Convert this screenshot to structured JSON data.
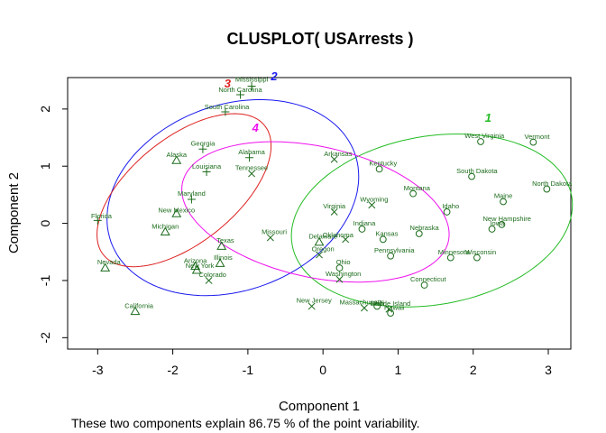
{
  "chart_data": {
    "type": "scatter",
    "title": "CLUSPLOT( USArrests )",
    "xlabel": "Component 1",
    "ylabel": "Component 2",
    "subtitle": "These two components explain 86.75 % of the point variability.",
    "xlim": [
      -3.4,
      3.3
    ],
    "ylim": [
      -2.2,
      2.55
    ],
    "xticks": [
      -3,
      -2,
      -1,
      0,
      1,
      2,
      3
    ],
    "yticks": [
      -2,
      -1,
      0,
      1,
      2
    ],
    "grid": false,
    "clusters": [
      {
        "label": "1",
        "symbol": "circle",
        "ellipse_color": "#22bb22",
        "label_color": "#22bb22",
        "ellipse": {
          "cx": 1.45,
          "cy": 0.05,
          "rx": 1.92,
          "ry": 1.45,
          "angle_deg": 20
        },
        "label_pos": [
          2.2,
          1.78
        ]
      },
      {
        "label": "2",
        "symbol": "triangle",
        "ellipse_color": "#1a1aee",
        "label_color": "#1a1aee",
        "ellipse": {
          "cx": -1.2,
          "cy": 0.45,
          "rx": 1.87,
          "ry": 1.5,
          "angle_deg": 48
        },
        "label_pos": [
          -0.65,
          2.5
        ]
      },
      {
        "label": "3",
        "symbol": "plus",
        "ellipse_color": "#dd2222",
        "label_color": "#dd2222",
        "ellipse": {
          "cx": -1.85,
          "cy": 0.58,
          "rx": 1.58,
          "ry": 0.8,
          "angle_deg": 52
        },
        "label_pos": [
          -1.27,
          2.38
        ]
      },
      {
        "label": "4",
        "symbol": "x",
        "ellipse_color": "#ee11ee",
        "label_color": "#ee11ee",
        "ellipse": {
          "cx": -0.1,
          "cy": 0.2,
          "rx": 1.85,
          "ry": 1.12,
          "angle_deg": -20
        },
        "label_pos": [
          -0.9,
          1.6
        ]
      }
    ],
    "points": [
      {
        "name": "Mississippi",
        "x": -0.95,
        "y": 2.4,
        "cluster": 3,
        "lx": -0.95,
        "ly": 2.48
      },
      {
        "name": "North Carolina",
        "x": -1.1,
        "y": 2.25,
        "cluster": 3,
        "lx": -1.1,
        "ly": 2.3
      },
      {
        "name": "South Carolina",
        "x": -1.3,
        "y": 1.95,
        "cluster": 3,
        "lx": -1.28,
        "ly": 2.0
      },
      {
        "name": "Georgia",
        "x": -1.6,
        "y": 1.3,
        "cluster": 3,
        "lx": -1.6,
        "ly": 1.36
      },
      {
        "name": "Alaska",
        "x": -1.95,
        "y": 1.1,
        "cluster": 2,
        "lx": -1.95,
        "ly": 1.16
      },
      {
        "name": "Alabama",
        "x": -0.98,
        "y": 1.15,
        "cluster": 3,
        "lx": -0.95,
        "ly": 1.21
      },
      {
        "name": "Louisiana",
        "x": -1.55,
        "y": 0.9,
        "cluster": 3,
        "lx": -1.55,
        "ly": 0.96
      },
      {
        "name": "Tennessee",
        "x": -0.95,
        "y": 0.87,
        "cluster": 4,
        "lx": -0.95,
        "ly": 0.93
      },
      {
        "name": "Maryland",
        "x": -1.75,
        "y": 0.42,
        "cluster": 3,
        "lx": -1.75,
        "ly": 0.48
      },
      {
        "name": "New Mexico",
        "x": -1.95,
        "y": 0.17,
        "cluster": 2,
        "lx": -1.95,
        "ly": 0.19
      },
      {
        "name": "Florida",
        "x": -3.0,
        "y": 0.05,
        "cluster": 3,
        "lx": -2.95,
        "ly": 0.09
      },
      {
        "name": "Michigan",
        "x": -2.1,
        "y": -0.15,
        "cluster": 2,
        "lx": -2.1,
        "ly": -0.09
      },
      {
        "name": "Nevada",
        "x": -2.9,
        "y": -0.78,
        "cluster": 2,
        "lx": -2.85,
        "ly": -0.72
      },
      {
        "name": "California",
        "x": -2.5,
        "y": -1.54,
        "cluster": 2,
        "lx": -2.45,
        "ly": -1.48
      },
      {
        "name": "Texas",
        "x": -1.35,
        "y": -0.4,
        "cluster": 2,
        "lx": -1.3,
        "ly": -0.34
      },
      {
        "name": "Illinois",
        "x": -1.37,
        "y": -0.7,
        "cluster": 2,
        "lx": -1.33,
        "ly": -0.64
      },
      {
        "name": "Arizona",
        "x": -1.7,
        "y": -0.75,
        "cluster": 2,
        "lx": -1.7,
        "ly": -0.69
      },
      {
        "name": "New York",
        "x": -1.68,
        "y": -0.82,
        "cluster": 2,
        "lx": -1.64,
        "ly": -0.78
      },
      {
        "name": "Colorado",
        "x": -1.52,
        "y": -1.0,
        "cluster": 4,
        "lx": -1.47,
        "ly": -0.94
      },
      {
        "name": "Missouri",
        "x": -0.7,
        "y": -0.25,
        "cluster": 4,
        "lx": -0.65,
        "ly": -0.19
      },
      {
        "name": "Arkansas",
        "x": 0.15,
        "y": 1.12,
        "cluster": 4,
        "lx": 0.2,
        "ly": 1.18
      },
      {
        "name": "Virginia",
        "x": 0.15,
        "y": 0.2,
        "cluster": 4,
        "lx": 0.15,
        "ly": 0.26
      },
      {
        "name": "Delaware",
        "x": -0.05,
        "y": -0.33,
        "cluster": 2,
        "lx": 0.0,
        "ly": -0.27
      },
      {
        "name": "Oklahoma",
        "x": 0.3,
        "y": -0.28,
        "cluster": 4,
        "lx": 0.2,
        "ly": -0.24
      },
      {
        "name": "Oregon",
        "x": -0.05,
        "y": -0.55,
        "cluster": 4,
        "lx": 0.0,
        "ly": -0.49
      },
      {
        "name": "Ohio",
        "x": 0.22,
        "y": -0.78,
        "cluster": 1,
        "lx": 0.27,
        "ly": -0.72
      },
      {
        "name": "Washington",
        "x": 0.22,
        "y": -0.98,
        "cluster": 4,
        "lx": 0.27,
        "ly": -0.92
      },
      {
        "name": "New Jersey",
        "x": -0.15,
        "y": -1.45,
        "cluster": 4,
        "lx": -0.12,
        "ly": -1.39
      },
      {
        "name": "Massachusetts",
        "x": 0.55,
        "y": -1.48,
        "cluster": 4,
        "lx": 0.52,
        "ly": -1.42
      },
      {
        "name": "Rhode Island",
        "x": 0.88,
        "y": -1.5,
        "cluster": 4,
        "lx": 0.9,
        "ly": -1.44
      },
      {
        "name": "Hawaii",
        "x": 0.9,
        "y": -1.57,
        "cluster": 1,
        "lx": 0.95,
        "ly": -1.51
      },
      {
        "name": "Utah",
        "x": 0.72,
        "y": -1.45,
        "cluster": 1,
        "lx": 0.72,
        "ly": -1.44
      },
      {
        "name": "Kentucky",
        "x": 0.75,
        "y": 0.95,
        "cluster": 1,
        "lx": 0.8,
        "ly": 1.01
      },
      {
        "name": "Wyoming",
        "x": 0.65,
        "y": 0.32,
        "cluster": 4,
        "lx": 0.68,
        "ly": 0.38
      },
      {
        "name": "Indiana",
        "x": 0.52,
        "y": -0.1,
        "cluster": 1,
        "lx": 0.55,
        "ly": -0.04
      },
      {
        "name": "Kansas",
        "x": 0.8,
        "y": -0.28,
        "cluster": 1,
        "lx": 0.85,
        "ly": -0.22
      },
      {
        "name": "Pennsylvania",
        "x": 0.9,
        "y": -0.57,
        "cluster": 1,
        "lx": 0.95,
        "ly": -0.51
      },
      {
        "name": "Connecticut",
        "x": 1.35,
        "y": -1.08,
        "cluster": 1,
        "lx": 1.4,
        "ly": -1.02
      },
      {
        "name": "Montana",
        "x": 1.2,
        "y": 0.52,
        "cluster": 1,
        "lx": 1.25,
        "ly": 0.58
      },
      {
        "name": "Nebraska",
        "x": 1.28,
        "y": -0.18,
        "cluster": 1,
        "lx": 1.35,
        "ly": -0.12
      },
      {
        "name": "Idaho",
        "x": 1.65,
        "y": 0.2,
        "cluster": 1,
        "lx": 1.7,
        "ly": 0.26
      },
      {
        "name": "Minnesota",
        "x": 1.7,
        "y": -0.6,
        "cluster": 1,
        "lx": 1.74,
        "ly": -0.54
      },
      {
        "name": "Wisconsin",
        "x": 2.05,
        "y": -0.6,
        "cluster": 1,
        "lx": 2.1,
        "ly": -0.54
      },
      {
        "name": "West Virginia",
        "x": 2.1,
        "y": 1.43,
        "cluster": 1,
        "lx": 2.15,
        "ly": 1.49
      },
      {
        "name": "Vermont",
        "x": 2.8,
        "y": 1.42,
        "cluster": 1,
        "lx": 2.85,
        "ly": 1.48
      },
      {
        "name": "South Dakota",
        "x": 1.98,
        "y": 0.82,
        "cluster": 1,
        "lx": 2.05,
        "ly": 0.88
      },
      {
        "name": "Maine",
        "x": 2.4,
        "y": 0.38,
        "cluster": 1,
        "lx": 2.4,
        "ly": 0.44
      },
      {
        "name": "North Dakota",
        "x": 2.98,
        "y": 0.6,
        "cluster": 1,
        "lx": 3.05,
        "ly": 0.66
      },
      {
        "name": "New Hampshire",
        "x": 2.38,
        "y": -0.02,
        "cluster": 1,
        "lx": 2.45,
        "ly": 0.04
      },
      {
        "name": "Iowa",
        "x": 2.25,
        "y": -0.1,
        "cluster": 1,
        "lx": 2.32,
        "ly": -0.04
      }
    ]
  }
}
